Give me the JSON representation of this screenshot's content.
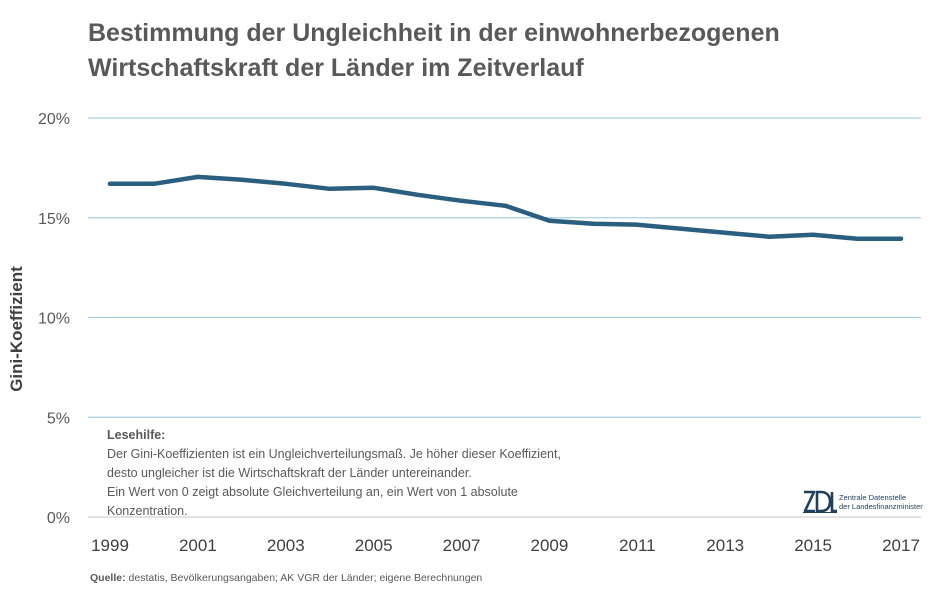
{
  "chart_data": {
    "type": "line",
    "title_lines": [
      "Bestimmung der Ungleichheit in der einwohnerbezogenen",
      "Wirtschaftskraft  der Länder im Zeitverlauf"
    ],
    "ylabel": "Gini-Koeffizient",
    "xlabel": "",
    "x": [
      1999,
      2000,
      2001,
      2002,
      2003,
      2004,
      2005,
      2006,
      2007,
      2008,
      2009,
      2010,
      2011,
      2012,
      2013,
      2014,
      2015,
      2016,
      2017
    ],
    "series": [
      {
        "values": [
          16.7,
          16.7,
          17.05,
          16.9,
          16.7,
          16.45,
          16.5,
          16.15,
          15.85,
          15.6,
          14.85,
          14.7,
          14.65,
          14.45,
          14.25,
          14.05,
          14.15,
          13.95,
          13.95
        ],
        "color": "#2a5f80"
      }
    ],
    "ylim": [
      0,
      20
    ],
    "yticks": [
      0,
      5,
      10,
      15,
      20
    ],
    "ytick_labels": [
      "0%",
      "5%",
      "10%",
      "15%",
      "20%"
    ],
    "xticks": [
      1999,
      2001,
      2003,
      2005,
      2007,
      2009,
      2011,
      2013,
      2015,
      2017
    ],
    "xtick_labels": [
      "1999",
      "2001",
      "2003",
      "2005",
      "2007",
      "2009",
      "2011",
      "2013",
      "2015",
      "2017"
    ],
    "grid": true,
    "legend": "none"
  },
  "note": {
    "title": "Lesehilfe:",
    "lines": [
      "Der Gini-Koeffizienten ist ein Ungleichverteilungsmaß. Je höher dieser Koeffizient,",
      "desto ungleicher ist die Wirtschaftskraft der Länder untereinander.",
      "Ein Wert von 0  zeigt absolute Gleichverteilung an, ein Wert von 1 absolute",
      "Konzentration."
    ]
  },
  "logo": {
    "mark": "ZDL",
    "line1": "Zentrale Datenstelle",
    "line2": "der Landesfinanzminister"
  },
  "source": {
    "label": "Quelle:",
    "text": " destatis, Bevölkerungsangaben; AK VGR der Länder; eigene Berechnungen"
  },
  "colors": {
    "line": "#2a5f80",
    "grid": "#a9cfe3",
    "axis": "#d0d0d0",
    "text": "#595959"
  }
}
